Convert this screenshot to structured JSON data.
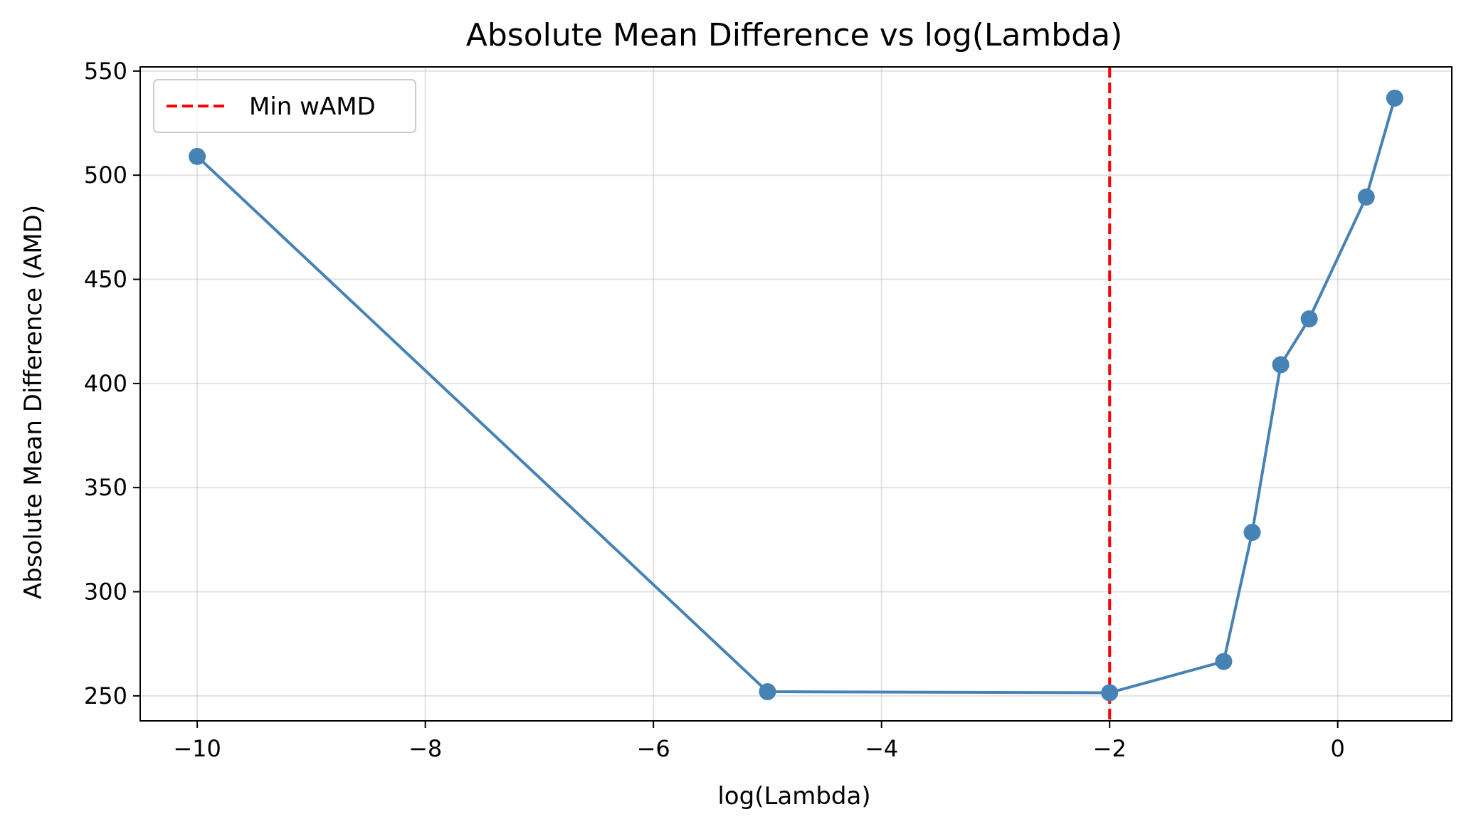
{
  "chart_data": {
    "type": "line",
    "title": "Absolute Mean Difference vs log(Lambda)",
    "xlabel": "log(Lambda)",
    "ylabel": "Absolute Mean Difference (AMD)",
    "xlim": [
      -10.5,
      1.0
    ],
    "ylim": [
      238,
      552
    ],
    "x_ticks": [
      -10,
      -8,
      -6,
      -4,
      -2,
      0
    ],
    "x_tick_labels": [
      "−10",
      "−8",
      "−6",
      "−4",
      "−2",
      "0"
    ],
    "y_ticks": [
      250,
      300,
      350,
      400,
      450,
      500,
      550
    ],
    "y_tick_labels": [
      "250",
      "300",
      "350",
      "400",
      "450",
      "500",
      "550"
    ],
    "grid": true,
    "legend_position": "top-left",
    "series": [
      {
        "x": [
          -10,
          -5,
          -2,
          -1,
          -0.75,
          -0.5,
          -0.25,
          0.25,
          0.5
        ],
        "y": [
          509,
          252,
          251.5,
          266.5,
          328.5,
          409,
          431,
          489.5,
          537
        ],
        "color": "#4682B4",
        "marker": "circle"
      }
    ],
    "reference_lines": [
      {
        "orientation": "vertical",
        "x": -2,
        "name": "Min wAMD",
        "color": "#FF0000",
        "style": "dashed"
      }
    ]
  }
}
